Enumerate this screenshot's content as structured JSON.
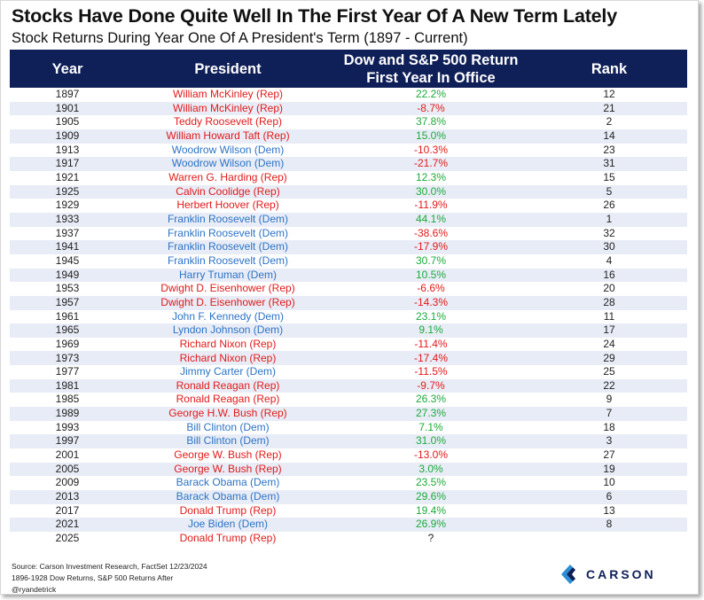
{
  "title": "Stocks Have Done Quite Well In The First Year Of A New Term Lately",
  "subtitle": "Stock Returns During Year One Of A President's Term (1897 - Current)",
  "headers": {
    "year": "Year",
    "president": "President",
    "return_line1": "Dow and S&P 500 Return",
    "return_line2": "First Year In Office",
    "rank": "Rank"
  },
  "colors": {
    "header_bg": "#0f1f57",
    "rep": "#e21a1a",
    "dem": "#2c73c6",
    "positive": "#1bab3a",
    "negative": "#e21a1a",
    "row_alt": "#e8ecf6"
  },
  "rows": [
    {
      "year": "1897",
      "president": "William McKinley (Rep)",
      "party": "rep",
      "ret": "22.2%",
      "rank": "12"
    },
    {
      "year": "1901",
      "president": "William McKinley (Rep)",
      "party": "rep",
      "ret": "-8.7%",
      "rank": "21"
    },
    {
      "year": "1905",
      "president": "Teddy Roosevelt (Rep)",
      "party": "rep",
      "ret": "37.8%",
      "rank": "2"
    },
    {
      "year": "1909",
      "president": "William Howard Taft (Rep)",
      "party": "rep",
      "ret": "15.0%",
      "rank": "14"
    },
    {
      "year": "1913",
      "president": "Woodrow Wilson (Dem)",
      "party": "dem",
      "ret": "-10.3%",
      "rank": "23"
    },
    {
      "year": "1917",
      "president": "Woodrow Wilson (Dem)",
      "party": "dem",
      "ret": "-21.7%",
      "rank": "31"
    },
    {
      "year": "1921",
      "president": "Warren G. Harding (Rep)",
      "party": "rep",
      "ret": "12.3%",
      "rank": "15"
    },
    {
      "year": "1925",
      "president": "Calvin Coolidge (Rep)",
      "party": "rep",
      "ret": "30.0%",
      "rank": "5"
    },
    {
      "year": "1929",
      "president": "Herbert Hoover (Rep)",
      "party": "rep",
      "ret": "-11.9%",
      "rank": "26"
    },
    {
      "year": "1933",
      "president": "Franklin Roosevelt (Dem)",
      "party": "dem",
      "ret": "44.1%",
      "rank": "1"
    },
    {
      "year": "1937",
      "president": "Franklin Roosevelt (Dem)",
      "party": "dem",
      "ret": "-38.6%",
      "rank": "32"
    },
    {
      "year": "1941",
      "president": "Franklin Roosevelt (Dem)",
      "party": "dem",
      "ret": "-17.9%",
      "rank": "30"
    },
    {
      "year": "1945",
      "president": "Franklin Roosevelt (Dem)",
      "party": "dem",
      "ret": "30.7%",
      "rank": "4"
    },
    {
      "year": "1949",
      "president": "Harry Truman (Dem)",
      "party": "dem",
      "ret": "10.5%",
      "rank": "16"
    },
    {
      "year": "1953",
      "president": "Dwight D. Eisenhower (Rep)",
      "party": "rep",
      "ret": "-6.6%",
      "rank": "20"
    },
    {
      "year": "1957",
      "president": "Dwight D. Eisenhower (Rep)",
      "party": "rep",
      "ret": "-14.3%",
      "rank": "28"
    },
    {
      "year": "1961",
      "president": "John F. Kennedy (Dem)",
      "party": "dem",
      "ret": "23.1%",
      "rank": "11"
    },
    {
      "year": "1965",
      "president": "Lyndon Johnson (Dem)",
      "party": "dem",
      "ret": "9.1%",
      "rank": "17"
    },
    {
      "year": "1969",
      "president": "Richard Nixon (Rep)",
      "party": "rep",
      "ret": "-11.4%",
      "rank": "24"
    },
    {
      "year": "1973",
      "president": "Richard Nixon (Rep)",
      "party": "rep",
      "ret": "-17.4%",
      "rank": "29"
    },
    {
      "year": "1977",
      "president": "Jimmy Carter (Dem)",
      "party": "dem",
      "ret": "-11.5%",
      "rank": "25"
    },
    {
      "year": "1981",
      "president": "Ronald Reagan (Rep)",
      "party": "rep",
      "ret": "-9.7%",
      "rank": "22"
    },
    {
      "year": "1985",
      "president": "Ronald Reagan (Rep)",
      "party": "rep",
      "ret": "26.3%",
      "rank": "9"
    },
    {
      "year": "1989",
      "president": "George H.W. Bush (Rep)",
      "party": "rep",
      "ret": "27.3%",
      "rank": "7"
    },
    {
      "year": "1993",
      "president": "Bill Clinton (Dem)",
      "party": "dem",
      "ret": "7.1%",
      "rank": "18"
    },
    {
      "year": "1997",
      "president": "Bill Clinton (Dem)",
      "party": "dem",
      "ret": "31.0%",
      "rank": "3"
    },
    {
      "year": "2001",
      "president": "George W. Bush (Rep)",
      "party": "rep",
      "ret": "-13.0%",
      "rank": "27"
    },
    {
      "year": "2005",
      "president": "George W. Bush (Rep)",
      "party": "rep",
      "ret": "3.0%",
      "rank": "19"
    },
    {
      "year": "2009",
      "president": "Barack Obama (Dem)",
      "party": "dem",
      "ret": "23.5%",
      "rank": "10"
    },
    {
      "year": "2013",
      "president": "Barack Obama (Dem)",
      "party": "dem",
      "ret": "29.6%",
      "rank": "6"
    },
    {
      "year": "2017",
      "president": "Donald Trump (Rep)",
      "party": "rep",
      "ret": "19.4%",
      "rank": "13"
    },
    {
      "year": "2021",
      "president": "Joe Biden (Dem)",
      "party": "dem",
      "ret": "26.9%",
      "rank": "8"
    },
    {
      "year": "2025",
      "president": "Donald Trump (Rep)",
      "party": "rep",
      "ret": "?",
      "rank": ""
    }
  ],
  "footer": {
    "source": "Source: Carson Investment Research, FactSet 12/23/2024",
    "note": "1896-1928 Dow Returns, S&P 500 Returns After",
    "handle": "@ryandetrick"
  },
  "logo": {
    "text": "CARSON",
    "icon": "carson-logo-icon"
  }
}
